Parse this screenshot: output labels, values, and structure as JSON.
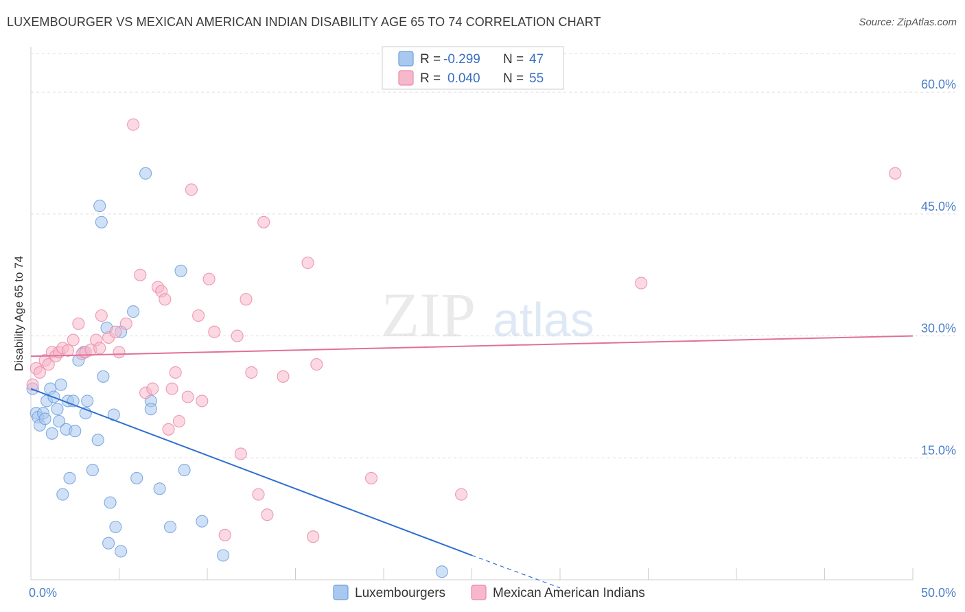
{
  "title": "LUXEMBOURGER VS MEXICAN AMERICAN INDIAN DISABILITY AGE 65 TO 74 CORRELATION CHART",
  "source": "Source: ZipAtlas.com",
  "watermark": {
    "zip": "ZIP",
    "atlas": "atlas"
  },
  "legend": {
    "rows": [
      {
        "r_label": "R =",
        "r_value": "-0.299",
        "n_label": "N =",
        "n_value": "47",
        "color": "#a9c8f0"
      },
      {
        "r_label": "R =",
        "r_value": "0.040",
        "n_label": "N =",
        "n_value": "55",
        "color": "#f7b8cb"
      }
    ]
  },
  "chart_data": {
    "type": "scatter",
    "title": "LUXEMBOURGER VS MEXICAN AMERICAN INDIAN DISABILITY AGE 65 TO 74 CORRELATION CHART",
    "ylabel": "Disability Age 65 to 74",
    "xlabel": "",
    "xlim": [
      0,
      50
    ],
    "ylim": [
      0,
      65
    ],
    "x_tick_labels": [
      "0.0%",
      "50.0%"
    ],
    "y_tick_values": [
      15,
      30,
      45,
      60
    ],
    "y_tick_labels": [
      "15.0%",
      "30.0%",
      "45.0%",
      "60.0%"
    ],
    "grid": true,
    "series": [
      {
        "name": "Luxembourgers",
        "color": "#a9c8f0",
        "stroke": "#6b9fdb",
        "trend_color": "#2f6fd0",
        "points": [
          [
            0.1,
            23.5
          ],
          [
            0.3,
            20.5
          ],
          [
            0.4,
            20.0
          ],
          [
            0.5,
            19.0
          ],
          [
            0.7,
            20.5
          ],
          [
            0.8,
            19.8
          ],
          [
            0.9,
            22.0
          ],
          [
            1.1,
            23.5
          ],
          [
            1.2,
            18.0
          ],
          [
            1.3,
            22.5
          ],
          [
            1.5,
            21.0
          ],
          [
            1.6,
            19.5
          ],
          [
            1.7,
            24.0
          ],
          [
            1.8,
            10.5
          ],
          [
            2.0,
            18.5
          ],
          [
            2.1,
            22.0
          ],
          [
            2.2,
            12.5
          ],
          [
            2.4,
            22.0
          ],
          [
            2.5,
            18.3
          ],
          [
            2.7,
            27.0
          ],
          [
            3.0,
            28.0
          ],
          [
            3.1,
            20.5
          ],
          [
            3.2,
            22.0
          ],
          [
            3.5,
            13.5
          ],
          [
            3.8,
            17.2
          ],
          [
            3.9,
            46.0
          ],
          [
            4.0,
            44.0
          ],
          [
            4.1,
            25.0
          ],
          [
            4.3,
            31.0
          ],
          [
            4.4,
            4.5
          ],
          [
            4.5,
            9.5
          ],
          [
            4.7,
            20.3
          ],
          [
            4.8,
            6.5
          ],
          [
            5.1,
            3.5
          ],
          [
            5.1,
            30.5
          ],
          [
            5.8,
            33.0
          ],
          [
            6.0,
            12.5
          ],
          [
            6.5,
            50.0
          ],
          [
            6.8,
            22.0
          ],
          [
            6.8,
            21.0
          ],
          [
            7.3,
            11.2
          ],
          [
            7.9,
            6.5
          ],
          [
            8.5,
            38.0
          ],
          [
            8.7,
            13.5
          ],
          [
            9.7,
            7.2
          ],
          [
            10.9,
            3.0
          ],
          [
            23.3,
            1.0
          ]
        ],
        "trend": {
          "x": [
            0,
            25,
            30
          ],
          "y": [
            23.5,
            3.0,
            -1.0
          ]
        }
      },
      {
        "name": "Mexican American Indians",
        "color": "#f7b8cb",
        "stroke": "#e98aa8",
        "trend_color": "#e0709a",
        "points": [
          [
            0.1,
            24.0
          ],
          [
            0.3,
            26.0
          ],
          [
            0.5,
            25.5
          ],
          [
            0.8,
            27.0
          ],
          [
            1.0,
            26.5
          ],
          [
            1.2,
            28.0
          ],
          [
            1.4,
            27.5
          ],
          [
            1.6,
            28.0
          ],
          [
            1.8,
            28.5
          ],
          [
            2.1,
            28.2
          ],
          [
            2.4,
            29.5
          ],
          [
            2.7,
            31.5
          ],
          [
            2.9,
            27.8
          ],
          [
            3.1,
            28.0
          ],
          [
            3.4,
            28.3
          ],
          [
            3.7,
            29.5
          ],
          [
            3.9,
            28.5
          ],
          [
            4.0,
            32.5
          ],
          [
            4.4,
            29.8
          ],
          [
            4.8,
            30.5
          ],
          [
            5.0,
            28.0
          ],
          [
            5.4,
            31.5
          ],
          [
            5.8,
            56.0
          ],
          [
            6.2,
            37.5
          ],
          [
            6.5,
            23.0
          ],
          [
            6.9,
            23.5
          ],
          [
            7.2,
            36.0
          ],
          [
            7.4,
            35.5
          ],
          [
            7.6,
            34.5
          ],
          [
            7.8,
            18.5
          ],
          [
            8.0,
            23.5
          ],
          [
            8.2,
            25.5
          ],
          [
            8.4,
            19.5
          ],
          [
            8.9,
            22.5
          ],
          [
            9.1,
            48.0
          ],
          [
            9.5,
            32.5
          ],
          [
            9.7,
            22.0
          ],
          [
            10.1,
            37.0
          ],
          [
            10.4,
            30.5
          ],
          [
            11.0,
            5.5
          ],
          [
            11.7,
            30.0
          ],
          [
            11.9,
            15.5
          ],
          [
            12.2,
            34.5
          ],
          [
            12.5,
            25.5
          ],
          [
            12.9,
            10.5
          ],
          [
            13.2,
            44.0
          ],
          [
            13.4,
            8.0
          ],
          [
            14.3,
            25.0
          ],
          [
            15.7,
            39.0
          ],
          [
            16.0,
            5.3
          ],
          [
            16.2,
            26.5
          ],
          [
            19.3,
            12.5
          ],
          [
            24.4,
            10.5
          ],
          [
            34.6,
            36.5
          ],
          [
            49.0,
            50.0
          ]
        ],
        "trend": {
          "x": [
            0,
            50
          ],
          "y": [
            27.5,
            30.0
          ]
        }
      }
    ]
  }
}
